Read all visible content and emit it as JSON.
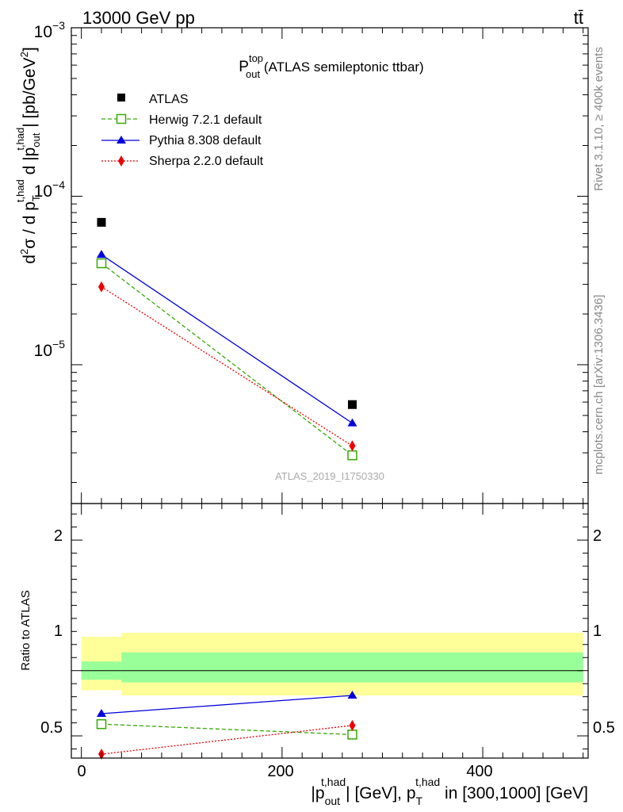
{
  "header": {
    "left": "13000 GeV pp",
    "right": "tt̄"
  },
  "side_labels": {
    "rivet": "Rivet 3.1.10, ≥ 400k events",
    "mcplots": "mcplots.cern.ch [arXiv:1306.3436]"
  },
  "chart_data": [
    {
      "type": "scatter",
      "title": {
        "main": "P",
        "sup": "top",
        "sub": "out",
        "rest": " (ATLAS semileptonic ttbar)"
      },
      "watermark": "ATLAS_2019_I1750330",
      "ylabel": {
        "a": "d",
        "a_sup": "2",
        "b": "σ / d p",
        "b_sub": "T",
        "b_sup": "t,had",
        "c": " d |p",
        "c_sub": "out",
        "c_sup": "t,had",
        "d": "| [pb/GeV",
        "d_sup": "2",
        "e": "]"
      },
      "y_scale": "log",
      "ylim": [
        1.5e-06,
        0.001
      ],
      "xlim": [
        -10,
        505
      ],
      "yticks": [
        {
          "value": 1e-05,
          "base": "10",
          "exp": "−5"
        },
        {
          "value": 0.0001,
          "base": "10",
          "exp": "−4"
        },
        {
          "value": 0.001,
          "base": "10",
          "exp": "−3"
        }
      ],
      "legend_position": "top-left",
      "x": [
        20,
        270
      ],
      "series": [
        {
          "name": "ATLAS",
          "color": "#000000",
          "marker": "square-filled",
          "line": "none",
          "values": [
            7e-05,
            5.8e-06
          ]
        },
        {
          "name": "Herwig 7.2.1 default",
          "color": "#33aa00",
          "marker": "square-open",
          "line": "dashed",
          "values": [
            4e-05,
            2.9e-06
          ]
        },
        {
          "name": "Pythia 8.308 default",
          "color": "#0000dd",
          "marker": "triangle",
          "line": "solid",
          "values": [
            4.5e-05,
            4.5e-06
          ]
        },
        {
          "name": "Sherpa 2.2.0 default",
          "color": "#ee0000",
          "marker": "diamond",
          "line": "dotted",
          "values": [
            2.9e-05,
            3.3e-06
          ]
        }
      ]
    },
    {
      "type": "line",
      "ylabel": "Ratio to ATLAS",
      "xlabel": {
        "a": "|p",
        "a_sub": "out",
        "a_sup": "t,had",
        "b": "| [GeV], p",
        "b_sub": "T",
        "b_sup": "t,had",
        "c": " in [300,1000] [GeV]"
      },
      "xlim": [
        -10,
        505
      ],
      "ylim": [
        0.33,
        2.28
      ],
      "xticks": [
        {
          "value": 0,
          "label": "0"
        },
        {
          "value": 200,
          "label": "200"
        },
        {
          "value": 400,
          "label": "400"
        }
      ],
      "yticks": [
        {
          "value": 0.5,
          "label": "0.5"
        },
        {
          "value": 1,
          "label": "1"
        },
        {
          "value": 2,
          "label": "2"
        }
      ],
      "bands": [
        {
          "x": [
            0,
            40
          ],
          "yellow": [
            0.85,
            1.26
          ],
          "green": [
            0.93,
            1.07
          ]
        },
        {
          "x": [
            40,
            500
          ],
          "yellow": [
            0.81,
            1.29
          ],
          "green": [
            0.91,
            1.14
          ]
        }
      ],
      "x": [
        20,
        270
      ],
      "series": [
        {
          "name": "Herwig 7.2.1 default",
          "color": "#33aa00",
          "marker": "square-open",
          "line": "dashed",
          "values": [
            0.59,
            0.51
          ]
        },
        {
          "name": "Pythia 8.308 default",
          "color": "#0000dd",
          "marker": "triangle",
          "line": "solid",
          "values": [
            0.67,
            0.81
          ]
        },
        {
          "name": "Sherpa 2.2.0 default",
          "color": "#ee0000",
          "marker": "diamond",
          "line": "dotted",
          "values": [
            0.36,
            0.58
          ]
        }
      ]
    }
  ]
}
